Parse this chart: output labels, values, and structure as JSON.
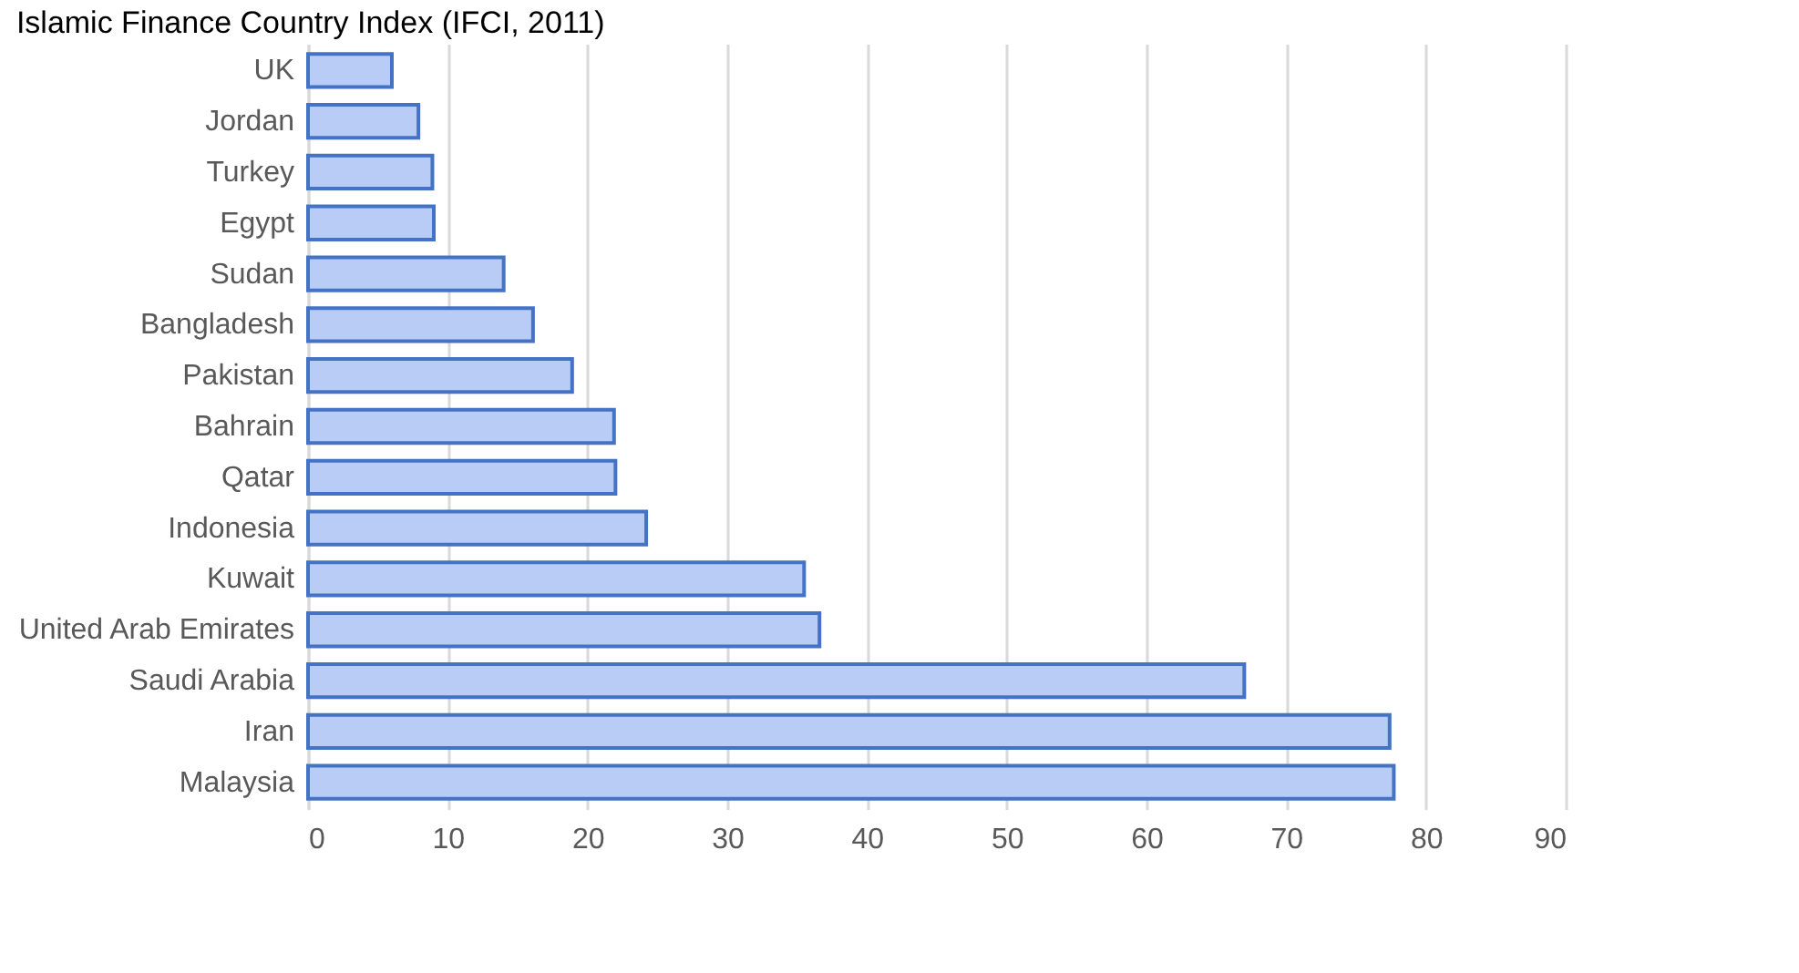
{
  "chart_data": {
    "type": "bar",
    "orientation": "horizontal",
    "title": "Islamic Finance Country Index (IFCI, 2011)",
    "categories": [
      "UK",
      "Jordan",
      "Turkey",
      "Egypt",
      "Sudan",
      "Bangladesh",
      "Pakistan",
      "Bahrain",
      "Qatar",
      "Indonesia",
      "Kuwait",
      "United Arab Emirates",
      "Saudi Arabia",
      "Iran",
      "Malaysia"
    ],
    "values": [
      6.0,
      7.9,
      8.9,
      9.0,
      14.0,
      16.1,
      18.9,
      21.9,
      22.0,
      24.2,
      35.5,
      36.6,
      67.0,
      77.4,
      77.7
    ],
    "color": "#b9ccf6",
    "xlim": [
      0,
      90
    ],
    "xticks": [
      0,
      10,
      20,
      30,
      40,
      50,
      60,
      70,
      80,
      90
    ],
    "grid": "x"
  }
}
